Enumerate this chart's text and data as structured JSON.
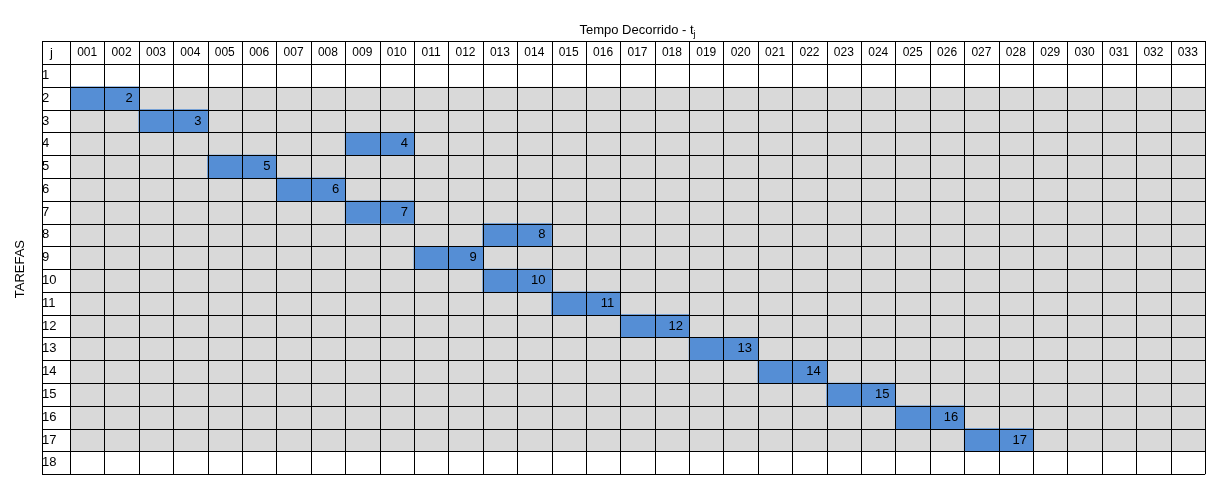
{
  "chart_data": {
    "type": "bar",
    "orientation": "horizontal",
    "xlabel": "Tempo Decorrido - t$_{j}$",
    "ylabel": "TAREFAS",
    "annotations": [
      "j",
      {
        "text": "2",
        "x": 2,
        "y": "2"
      },
      {
        "text": "3",
        "x": 4,
        "y": "3"
      },
      {
        "text": "4",
        "x": 10,
        "y": "4"
      },
      {
        "text": "5",
        "x": 6,
        "y": "5"
      },
      {
        "text": "6",
        "x": 8,
        "y": "6"
      },
      {
        "text": "7",
        "x": 10,
        "y": "7"
      },
      {
        "text": "8",
        "x": 14,
        "y": "8"
      },
      {
        "text": "9",
        "x": 12,
        "y": "9"
      },
      {
        "text": "10",
        "x": 14,
        "y": "10"
      },
      {
        "text": "11",
        "x": 16,
        "y": "11"
      },
      {
        "text": "12",
        "x": 18,
        "y": "12"
      },
      {
        "text": "13",
        "x": 20,
        "y": "13"
      },
      {
        "text": "14",
        "x": 22,
        "y": "14"
      },
      {
        "text": "15",
        "x": 24,
        "y": "15"
      },
      {
        "text": "16",
        "x": 26,
        "y": "16"
      },
      {
        "text": "17",
        "x": 28,
        "y": "17"
      }
    ],
    "categories": [
      "1",
      "2",
      "3",
      "4",
      "5",
      "6",
      "7",
      "8",
      "9",
      "10",
      "11",
      "12",
      "13",
      "14",
      "15",
      "16",
      "17",
      "18"
    ],
    "base": [
      null,
      0,
      2,
      8,
      4,
      6,
      8,
      12,
      10,
      12,
      14,
      16,
      18,
      20,
      22,
      24,
      26,
      null
    ],
    "values": [
      null,
      2,
      2,
      2,
      2,
      2,
      2,
      2,
      2,
      2,
      2,
      2,
      2,
      2,
      2,
      2,
      2,
      null
    ],
    "color": "#558ed5",
    "xlim": [
      0,
      33
    ],
    "xticks": [
      {
        "value": 0.5,
        "label": "001"
      },
      {
        "value": 1.5,
        "label": "002"
      },
      {
        "value": 2.5,
        "label": "003"
      },
      {
        "value": 3.5,
        "label": "004"
      },
      {
        "value": 4.5,
        "label": "005"
      },
      {
        "value": 5.5,
        "label": "006"
      },
      {
        "value": 6.5,
        "label": "007"
      },
      {
        "value": 7.5,
        "label": "008"
      },
      {
        "value": 8.5,
        "label": "009"
      },
      {
        "value": 9.5,
        "label": "010"
      },
      {
        "value": 10.5,
        "label": "011"
      },
      {
        "value": 11.5,
        "label": "012"
      },
      {
        "value": 12.5,
        "label": "013"
      },
      {
        "value": 13.5,
        "label": "014"
      },
      {
        "value": 14.5,
        "label": "015"
      },
      {
        "value": 15.5,
        "label": "016"
      },
      {
        "value": 16.5,
        "label": "017"
      },
      {
        "value": 17.5,
        "label": "018"
      },
      {
        "value": 18.5,
        "label": "019"
      },
      {
        "value": 19.5,
        "label": "020"
      },
      {
        "value": 20.5,
        "label": "021"
      },
      {
        "value": 21.5,
        "label": "022"
      },
      {
        "value": 22.5,
        "label": "023"
      },
      {
        "value": 23.5,
        "label": "024"
      },
      {
        "value": 24.5,
        "label": "025"
      },
      {
        "value": 25.5,
        "label": "026"
      },
      {
        "value": 26.5,
        "label": "027"
      },
      {
        "value": 27.5,
        "label": "028"
      },
      {
        "value": 28.5,
        "label": "029"
      },
      {
        "value": 29.5,
        "label": "030"
      },
      {
        "value": 30.5,
        "label": "031"
      },
      {
        "value": 31.5,
        "label": "032"
      },
      {
        "value": 32.5,
        "label": "033"
      }
    ],
    "bands": [
      {
        "axis": "y",
        "from": "2",
        "to": "17",
        "color": "#d9d9d9"
      }
    ],
    "grid": true,
    "legend": false
  }
}
